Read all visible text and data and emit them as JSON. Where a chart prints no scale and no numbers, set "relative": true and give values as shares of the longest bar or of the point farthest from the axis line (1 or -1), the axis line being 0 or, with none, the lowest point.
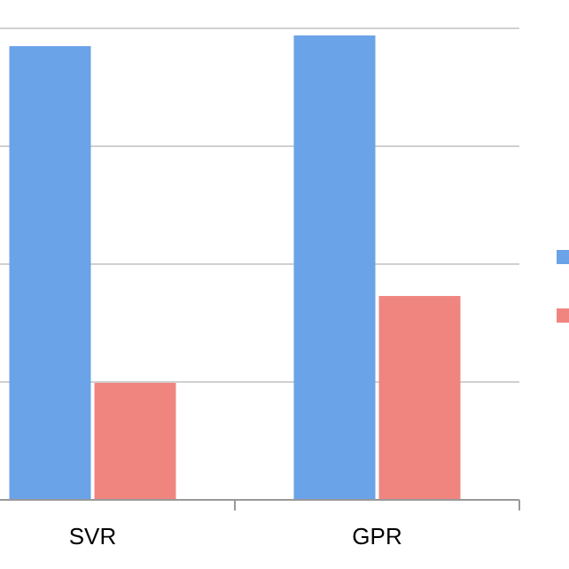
{
  "chart_data": {
    "type": "bar",
    "relative": true,
    "categories": [
      "SVR",
      "GPR"
    ],
    "series": [
      {
        "color": "#6aa3e8",
        "values": [
          0.977,
          1
        ]
      },
      {
        "color": "#f08580",
        "values": [
          0.252,
          0.439
        ]
      }
    ],
    "grid": "y"
  }
}
